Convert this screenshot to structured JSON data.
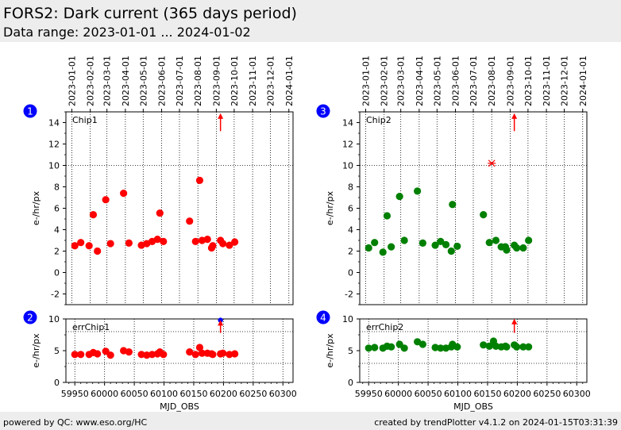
{
  "header": {
    "title": "FORS2: Dark current (365 days period)",
    "subtitle": "Data range: 2023-01-01 ... 2024-01-02"
  },
  "footer": {
    "left": "powered by QC: www.eso.org/HC",
    "right": "created by trendPlotter v4.1.2 on 2024-01-15T03:31:39"
  },
  "colors": {
    "chip1": "#ff0000",
    "chip2": "#008000",
    "badge": "#0000ff",
    "arrow_outlier": "#ff0000",
    "arrow_blue": "#0000ff"
  },
  "chart_data": [
    {
      "type": "scatter",
      "badge": "1",
      "label": "Chip1",
      "ylabel": "e-/hr/px",
      "xlim": [
        59935,
        60317
      ],
      "ylim": [
        -3,
        15
      ],
      "yticks": [
        -2,
        0,
        2,
        4,
        6,
        8,
        10,
        12,
        14
      ],
      "reference_line": 10,
      "color": "chip1",
      "date_ticks": [
        "2023-01-01",
        "2023-02-01",
        "2023-03-01",
        "2023-04-01",
        "2023-05-01",
        "2023-06-01",
        "2023-07-01",
        "2023-08-01",
        "2023-09-01",
        "2023-10-01",
        "2023-11-01",
        "2023-12-01",
        "2024-01-01"
      ],
      "points": [
        [
          59950,
          2.5
        ],
        [
          59960,
          2.8
        ],
        [
          59974,
          2.5
        ],
        [
          59981,
          5.4
        ],
        [
          59988,
          2.0
        ],
        [
          60002,
          6.8
        ],
        [
          60010,
          2.7
        ],
        [
          60032,
          7.4
        ],
        [
          60041,
          2.75
        ],
        [
          60062,
          2.55
        ],
        [
          60071,
          2.7
        ],
        [
          60080,
          2.9
        ],
        [
          60089,
          3.1
        ],
        [
          60093,
          5.55
        ],
        [
          60099,
          2.9
        ],
        [
          60143,
          4.8
        ],
        [
          60153,
          2.9
        ],
        [
          60160,
          8.6
        ],
        [
          60164,
          3.0
        ],
        [
          60173,
          3.1
        ],
        [
          60180,
          2.3
        ],
        [
          60182,
          2.5
        ],
        [
          60195,
          3.0
        ],
        [
          60199,
          2.7
        ],
        [
          60210,
          2.55
        ],
        [
          60219,
          2.85
        ]
      ],
      "outlier_arrows": [
        {
          "x": 60195,
          "from": 13.2,
          "to": 14.8
        }
      ]
    },
    {
      "type": "scatter",
      "badge": "2",
      "label": "errChip1",
      "ylabel": "e-/hr/px",
      "xlabel": "MJD_OBS",
      "xlim": [
        59935,
        60317
      ],
      "ylim": [
        0,
        10
      ],
      "yticks": [
        0,
        5,
        10
      ],
      "xticks": [
        59950,
        60000,
        60050,
        60100,
        60150,
        60200,
        60250,
        60300
      ],
      "xtick_labels": [
        "59950",
        "60000",
        "60050",
        "60100",
        "60150",
        "60200",
        "60250",
        "60300"
      ],
      "reference_lines": [
        8,
        3
      ],
      "color": "chip1",
      "points": [
        [
          59950,
          4.4
        ],
        [
          59960,
          4.4
        ],
        [
          59974,
          4.4
        ],
        [
          59981,
          4.7
        ],
        [
          59988,
          4.5
        ],
        [
          60002,
          4.9
        ],
        [
          60010,
          4.3
        ],
        [
          60032,
          5.0
        ],
        [
          60041,
          4.8
        ],
        [
          60062,
          4.4
        ],
        [
          60071,
          4.3
        ],
        [
          60080,
          4.4
        ],
        [
          60089,
          4.5
        ],
        [
          60093,
          4.8
        ],
        [
          60099,
          4.4
        ],
        [
          60143,
          4.8
        ],
        [
          60153,
          4.4
        ],
        [
          60160,
          5.5
        ],
        [
          60164,
          4.6
        ],
        [
          60173,
          4.6
        ],
        [
          60180,
          4.5
        ],
        [
          60182,
          4.4
        ],
        [
          60195,
          4.5
        ],
        [
          60199,
          4.6
        ],
        [
          60210,
          4.4
        ],
        [
          60219,
          4.5
        ]
      ],
      "outlier_arrows": [
        {
          "x": 60195,
          "from": 7.8,
          "to": 9.7
        }
      ],
      "blue_markers": [
        {
          "x": 60195,
          "y": 9.8
        }
      ]
    },
    {
      "type": "scatter",
      "badge": "3",
      "label": "Chip2",
      "ylabel": "e-/hr/px",
      "xlim": [
        59935,
        60317
      ],
      "ylim": [
        -3,
        15
      ],
      "yticks": [
        -2,
        0,
        2,
        4,
        6,
        8,
        10,
        12,
        14
      ],
      "reference_line": 10,
      "color": "chip2",
      "date_ticks": [
        "2023-01-01",
        "2023-02-01",
        "2023-03-01",
        "2023-04-01",
        "2023-05-01",
        "2023-06-01",
        "2023-07-01",
        "2023-08-01",
        "2023-09-01",
        "2023-10-01",
        "2023-11-01",
        "2023-12-01",
        "2024-01-01"
      ],
      "points": [
        [
          59950,
          2.3
        ],
        [
          59960,
          2.8
        ],
        [
          59974,
          1.9
        ],
        [
          59981,
          5.3
        ],
        [
          59988,
          2.4
        ],
        [
          60002,
          7.1
        ],
        [
          60010,
          3.0
        ],
        [
          60032,
          7.6
        ],
        [
          60041,
          2.75
        ],
        [
          60062,
          2.55
        ],
        [
          60071,
          2.9
        ],
        [
          60080,
          2.6
        ],
        [
          60089,
          2.0
        ],
        [
          60091,
          6.35
        ],
        [
          60099,
          2.45
        ],
        [
          60143,
          5.4
        ],
        [
          60153,
          2.8
        ],
        [
          60164,
          3.0
        ],
        [
          60173,
          2.4
        ],
        [
          60180,
          2.4
        ],
        [
          60182,
          2.1
        ],
        [
          60195,
          2.55
        ],
        [
          60199,
          2.3
        ],
        [
          60210,
          2.3
        ],
        [
          60219,
          3.0
        ]
      ],
      "red_crosses": [
        {
          "x": 60157,
          "y": 10.2
        }
      ],
      "outlier_arrows": [
        {
          "x": 60195,
          "from": 13.2,
          "to": 14.8
        }
      ]
    },
    {
      "type": "scatter",
      "badge": "4",
      "label": "errChip2",
      "ylabel": "e-/hr/px",
      "xlabel": "MJD_OBS",
      "xlim": [
        59935,
        60317
      ],
      "ylim": [
        0,
        10
      ],
      "yticks": [
        0,
        5,
        10
      ],
      "xticks": [
        59950,
        60000,
        60050,
        60100,
        60150,
        60200,
        60250,
        60300
      ],
      "xtick_labels": [
        "59950",
        "60000",
        "60050",
        "60100",
        "60150",
        "60200",
        "60250",
        "60300"
      ],
      "reference_lines": [
        8,
        3
      ],
      "color": "chip2",
      "points": [
        [
          59950,
          5.4
        ],
        [
          59960,
          5.5
        ],
        [
          59974,
          5.4
        ],
        [
          59981,
          5.7
        ],
        [
          59988,
          5.6
        ],
        [
          60002,
          6.0
        ],
        [
          60010,
          5.4
        ],
        [
          60032,
          6.4
        ],
        [
          60041,
          6.0
        ],
        [
          60062,
          5.5
        ],
        [
          60071,
          5.4
        ],
        [
          60080,
          5.4
        ],
        [
          60089,
          5.6
        ],
        [
          60091,
          6.0
        ],
        [
          60099,
          5.6
        ],
        [
          60143,
          5.9
        ],
        [
          60153,
          5.7
        ],
        [
          60160,
          6.5
        ],
        [
          60164,
          5.7
        ],
        [
          60173,
          5.6
        ],
        [
          60180,
          5.7
        ],
        [
          60182,
          5.6
        ],
        [
          60195,
          5.9
        ],
        [
          60199,
          5.6
        ],
        [
          60210,
          5.6
        ],
        [
          60219,
          5.6
        ]
      ],
      "outlier_arrows": [
        {
          "x": 60195,
          "from": 7.8,
          "to": 9.9
        }
      ]
    }
  ]
}
